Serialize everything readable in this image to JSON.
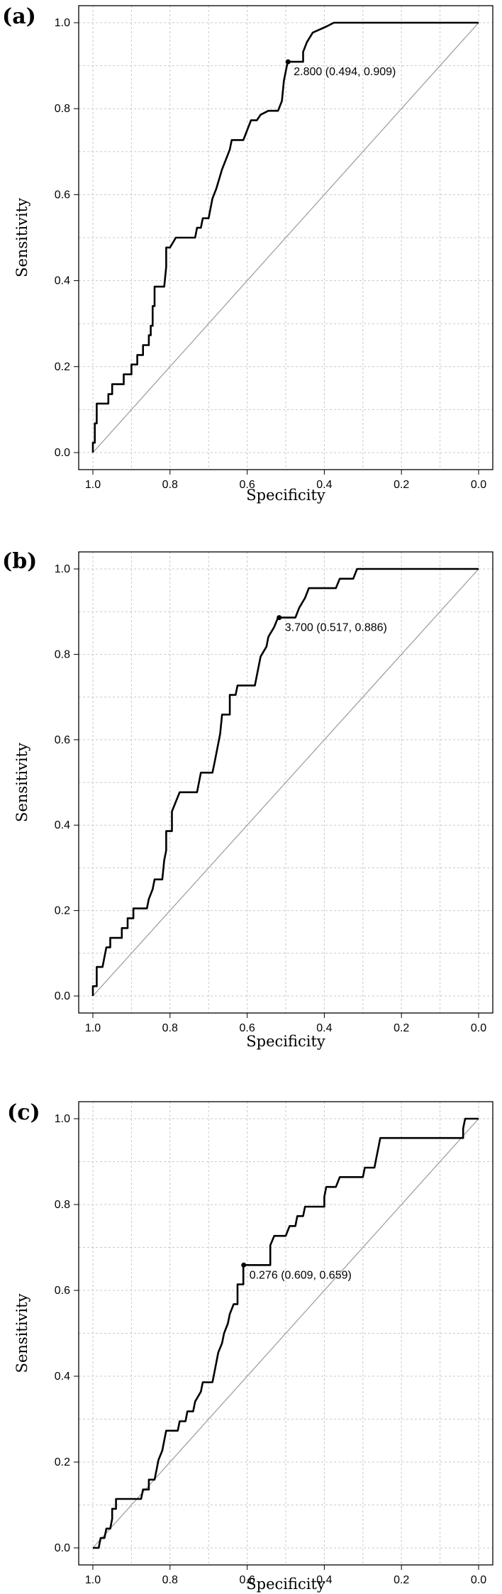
{
  "chart_data": [
    {
      "type": "line",
      "panel_label": "(a)",
      "xlabel": "Specificity",
      "ylabel": "Sensitivity",
      "x_reversed": true,
      "xlim": [
        1.0,
        0.0
      ],
      "ylim": [
        0.0,
        1.0
      ],
      "xticks": [
        "1.0",
        "0.8",
        "0.6",
        "0.4",
        "0.2",
        "0.0"
      ],
      "yticks": [
        "0.0",
        "0.2",
        "0.4",
        "0.6",
        "0.8",
        "1.0"
      ],
      "grid": true,
      "diagonal_reference": true,
      "threshold": {
        "label": "2.800 (0.494, 0.909)",
        "specificity": 0.494,
        "sensitivity": 0.909
      },
      "series": [
        {
          "points": [
            [
              1.0,
              0.0
            ],
            [
              1.0,
              0.023
            ],
            [
              0.995,
              0.023
            ],
            [
              0.995,
              0.068
            ],
            [
              0.99,
              0.068
            ],
            [
              0.99,
              0.114
            ],
            [
              0.96,
              0.114
            ],
            [
              0.96,
              0.136
            ],
            [
              0.95,
              0.136
            ],
            [
              0.95,
              0.159
            ],
            [
              0.92,
              0.159
            ],
            [
              0.92,
              0.182
            ],
            [
              0.9,
              0.182
            ],
            [
              0.9,
              0.205
            ],
            [
              0.885,
              0.205
            ],
            [
              0.885,
              0.227
            ],
            [
              0.87,
              0.227
            ],
            [
              0.87,
              0.25
            ],
            [
              0.855,
              0.25
            ],
            [
              0.855,
              0.273
            ],
            [
              0.85,
              0.273
            ],
            [
              0.85,
              0.295
            ],
            [
              0.845,
              0.295
            ],
            [
              0.845,
              0.341
            ],
            [
              0.84,
              0.341
            ],
            [
              0.84,
              0.386
            ],
            [
              0.815,
              0.386
            ],
            [
              0.81,
              0.432
            ],
            [
              0.81,
              0.477
            ],
            [
              0.8,
              0.477
            ],
            [
              0.785,
              0.5
            ],
            [
              0.735,
              0.5
            ],
            [
              0.73,
              0.523
            ],
            [
              0.72,
              0.523
            ],
            [
              0.715,
              0.545
            ],
            [
              0.7,
              0.545
            ],
            [
              0.69,
              0.591
            ],
            [
              0.68,
              0.614
            ],
            [
              0.665,
              0.659
            ],
            [
              0.655,
              0.682
            ],
            [
              0.645,
              0.705
            ],
            [
              0.64,
              0.727
            ],
            [
              0.61,
              0.727
            ],
            [
              0.6,
              0.75
            ],
            [
              0.59,
              0.773
            ],
            [
              0.575,
              0.773
            ],
            [
              0.565,
              0.786
            ],
            [
              0.545,
              0.795
            ],
            [
              0.52,
              0.795
            ],
            [
              0.51,
              0.818
            ],
            [
              0.505,
              0.864
            ],
            [
              0.495,
              0.909
            ],
            [
              0.455,
              0.909
            ],
            [
              0.455,
              0.932
            ],
            [
              0.445,
              0.955
            ],
            [
              0.43,
              0.977
            ],
            [
              0.395,
              0.991
            ],
            [
              0.375,
              1.0
            ],
            [
              0.0,
              1.0
            ]
          ]
        }
      ]
    },
    {
      "type": "line",
      "panel_label": "(b)",
      "xlabel": "Specificity",
      "ylabel": "Sensitivity",
      "x_reversed": true,
      "xlim": [
        1.0,
        0.0
      ],
      "ylim": [
        0.0,
        1.0
      ],
      "xticks": [
        "1.0",
        "0.8",
        "0.6",
        "0.4",
        "0.2",
        "0.0"
      ],
      "yticks": [
        "0.0",
        "0.2",
        "0.4",
        "0.6",
        "0.8",
        "1.0"
      ],
      "grid": true,
      "diagonal_reference": true,
      "threshold": {
        "label": "3.700 (0.517, 0.886)",
        "specificity": 0.517,
        "sensitivity": 0.886
      },
      "series": [
        {
          "points": [
            [
              1.0,
              0.0
            ],
            [
              1.0,
              0.023
            ],
            [
              0.99,
              0.023
            ],
            [
              0.99,
              0.068
            ],
            [
              0.975,
              0.068
            ],
            [
              0.965,
              0.114
            ],
            [
              0.955,
              0.114
            ],
            [
              0.955,
              0.136
            ],
            [
              0.925,
              0.136
            ],
            [
              0.925,
              0.159
            ],
            [
              0.91,
              0.159
            ],
            [
              0.91,
              0.182
            ],
            [
              0.895,
              0.182
            ],
            [
              0.895,
              0.205
            ],
            [
              0.86,
              0.205
            ],
            [
              0.855,
              0.227
            ],
            [
              0.845,
              0.25
            ],
            [
              0.84,
              0.273
            ],
            [
              0.82,
              0.273
            ],
            [
              0.815,
              0.318
            ],
            [
              0.81,
              0.341
            ],
            [
              0.81,
              0.386
            ],
            [
              0.795,
              0.386
            ],
            [
              0.795,
              0.432
            ],
            [
              0.785,
              0.455
            ],
            [
              0.775,
              0.477
            ],
            [
              0.73,
              0.477
            ],
            [
              0.72,
              0.523
            ],
            [
              0.69,
              0.523
            ],
            [
              0.685,
              0.545
            ],
            [
              0.68,
              0.568
            ],
            [
              0.67,
              0.614
            ],
            [
              0.665,
              0.659
            ],
            [
              0.645,
              0.659
            ],
            [
              0.645,
              0.705
            ],
            [
              0.63,
              0.705
            ],
            [
              0.625,
              0.727
            ],
            [
              0.58,
              0.727
            ],
            [
              0.575,
              0.75
            ],
            [
              0.57,
              0.773
            ],
            [
              0.565,
              0.795
            ],
            [
              0.55,
              0.818
            ],
            [
              0.545,
              0.841
            ],
            [
              0.53,
              0.864
            ],
            [
              0.52,
              0.886
            ],
            [
              0.475,
              0.886
            ],
            [
              0.465,
              0.909
            ],
            [
              0.45,
              0.932
            ],
            [
              0.44,
              0.955
            ],
            [
              0.37,
              0.955
            ],
            [
              0.36,
              0.977
            ],
            [
              0.325,
              0.977
            ],
            [
              0.315,
              1.0
            ],
            [
              0.0,
              1.0
            ]
          ]
        }
      ]
    },
    {
      "type": "line",
      "panel_label": "(c)",
      "xlabel": "Specificity",
      "ylabel": "Sensitivity",
      "x_reversed": true,
      "xlim": [
        1.0,
        0.0
      ],
      "ylim": [
        0.0,
        1.0
      ],
      "xticks": [
        "1.0",
        "0.8",
        "0.6",
        "0.4",
        "0.2",
        "0.0"
      ],
      "yticks": [
        "0.0",
        "0.2",
        "0.4",
        "0.6",
        "0.8",
        "1.0"
      ],
      "grid": true,
      "diagonal_reference": true,
      "threshold": {
        "label": "0.276 (0.609, 0.659)",
        "specificity": 0.609,
        "sensitivity": 0.659
      },
      "series": [
        {
          "points": [
            [
              1.0,
              0.0
            ],
            [
              0.985,
              0.0
            ],
            [
              0.98,
              0.023
            ],
            [
              0.97,
              0.023
            ],
            [
              0.965,
              0.045
            ],
            [
              0.955,
              0.045
            ],
            [
              0.95,
              0.068
            ],
            [
              0.95,
              0.091
            ],
            [
              0.94,
              0.091
            ],
            [
              0.94,
              0.114
            ],
            [
              0.875,
              0.114
            ],
            [
              0.87,
              0.136
            ],
            [
              0.855,
              0.136
            ],
            [
              0.855,
              0.159
            ],
            [
              0.84,
              0.159
            ],
            [
              0.835,
              0.182
            ],
            [
              0.83,
              0.205
            ],
            [
              0.82,
              0.227
            ],
            [
              0.815,
              0.25
            ],
            [
              0.81,
              0.273
            ],
            [
              0.78,
              0.273
            ],
            [
              0.775,
              0.295
            ],
            [
              0.76,
              0.295
            ],
            [
              0.755,
              0.318
            ],
            [
              0.74,
              0.318
            ],
            [
              0.735,
              0.341
            ],
            [
              0.72,
              0.364
            ],
            [
              0.715,
              0.386
            ],
            [
              0.69,
              0.386
            ],
            [
              0.685,
              0.409
            ],
            [
              0.68,
              0.432
            ],
            [
              0.675,
              0.455
            ],
            [
              0.665,
              0.477
            ],
            [
              0.66,
              0.5
            ],
            [
              0.65,
              0.523
            ],
            [
              0.645,
              0.545
            ],
            [
              0.635,
              0.568
            ],
            [
              0.625,
              0.568
            ],
            [
              0.625,
              0.614
            ],
            [
              0.61,
              0.614
            ],
            [
              0.61,
              0.659
            ],
            [
              0.54,
              0.659
            ],
            [
              0.54,
              0.705
            ],
            [
              0.53,
              0.727
            ],
            [
              0.5,
              0.727
            ],
            [
              0.49,
              0.75
            ],
            [
              0.475,
              0.75
            ],
            [
              0.47,
              0.773
            ],
            [
              0.455,
              0.773
            ],
            [
              0.45,
              0.795
            ],
            [
              0.4,
              0.795
            ],
            [
              0.4,
              0.818
            ],
            [
              0.395,
              0.841
            ],
            [
              0.37,
              0.841
            ],
            [
              0.36,
              0.864
            ],
            [
              0.3,
              0.864
            ],
            [
              0.295,
              0.886
            ],
            [
              0.27,
              0.886
            ],
            [
              0.265,
              0.909
            ],
            [
              0.26,
              0.932
            ],
            [
              0.255,
              0.955
            ],
            [
              0.04,
              0.955
            ],
            [
              0.04,
              0.977
            ],
            [
              0.035,
              1.0
            ],
            [
              0.0,
              1.0
            ]
          ]
        }
      ]
    }
  ]
}
